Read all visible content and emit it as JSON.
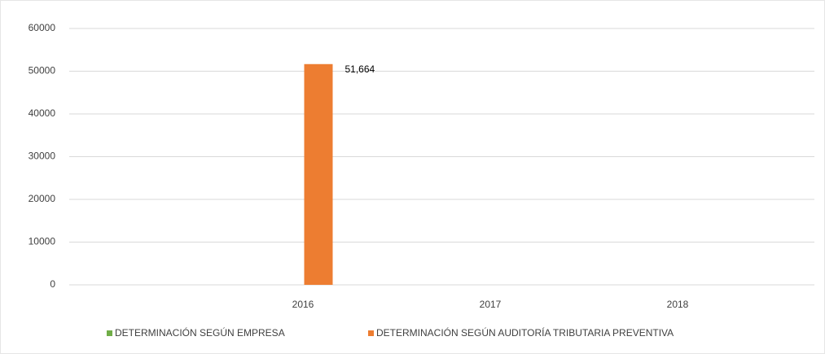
{
  "chart_data": {
    "type": "bar",
    "categories": [
      null,
      "2016",
      "2017",
      "2018"
    ],
    "series": [
      {
        "name": "DETERMINACIÓN SEGÚN EMPRESA",
        "color": "#70ad47",
        "values": [
          null,
          null,
          null,
          null
        ]
      },
      {
        "name": "DETERMINACIÓN SEGÚN AUDITORÍA TRIBUTARIA PREVENTIVA",
        "color": "#ed7d31",
        "values": [
          null,
          51664,
          null,
          null
        ],
        "value_labels": [
          null,
          "51,664",
          null,
          null
        ]
      }
    ],
    "ylim": [
      0,
      60000
    ],
    "yticks": [
      0,
      10000,
      20000,
      30000,
      40000,
      50000,
      60000
    ],
    "grid": true,
    "legend": "bottom"
  }
}
